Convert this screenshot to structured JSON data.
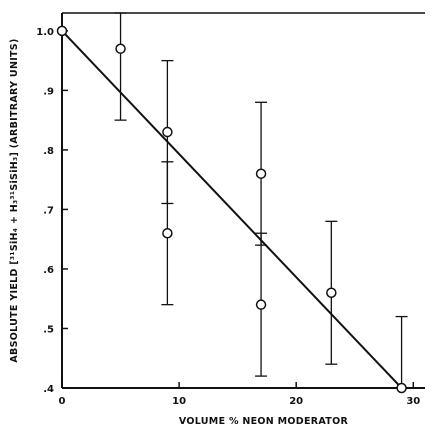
{
  "chart_data": {
    "type": "scatter",
    "title": "",
    "xlabel": "VOLUME % NEON MODERATOR",
    "ylabel": "ABSOLUTE YIELD [³¹SiH₄ + H₃³¹SiSiH₃] (ARBITRARY UNITS)",
    "xlim": [
      0,
      31
    ],
    "ylim": [
      0.4,
      1.03
    ],
    "x_ticks": [
      0,
      10,
      20,
      30
    ],
    "x_tick_labels": [
      "0",
      "10",
      "20",
      "30"
    ],
    "y_ticks": [
      0.4,
      0.5,
      0.6,
      0.7,
      0.8,
      0.9,
      1.0
    ],
    "y_tick_labels": [
      ".4",
      ".5",
      ".6",
      ".7",
      ".8",
      ".9",
      "1.0"
    ],
    "grid": false,
    "points": [
      {
        "x": 0,
        "y": 1.0
      },
      {
        "x": 5,
        "y": 0.97,
        "err_low": 0.85,
        "err_high": 1.03
      },
      {
        "x": 9,
        "y": 0.83,
        "err_low": 0.71,
        "err_high": 0.95
      },
      {
        "x": 9,
        "y": 0.66,
        "err_low": 0.54,
        "err_high": 0.78
      },
      {
        "x": 17,
        "y": 0.76,
        "err_low": 0.64,
        "err_high": 0.88
      },
      {
        "x": 17,
        "y": 0.54,
        "err_low": 0.42,
        "err_high": 0.66
      },
      {
        "x": 23,
        "y": 0.56,
        "err_low": 0.44,
        "err_high": 0.68
      },
      {
        "x": 29,
        "y": 0.4,
        "err_low": 0.4,
        "err_high": 0.52
      }
    ],
    "fit_line": {
      "x": [
        0,
        29
      ],
      "y": [
        1.0,
        0.4
      ]
    }
  }
}
